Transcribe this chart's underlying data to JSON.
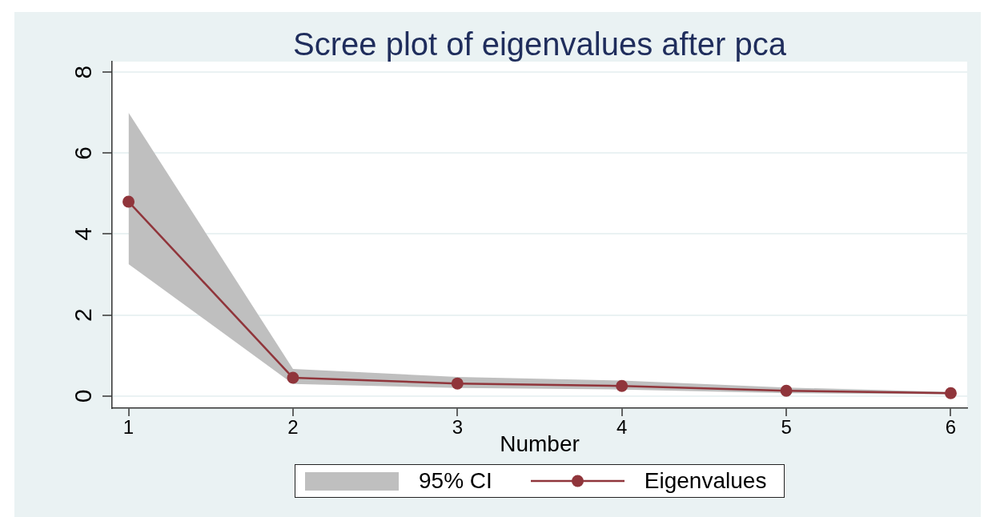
{
  "chart_data": {
    "type": "line",
    "title": "Scree plot of eigenvalues after pca",
    "xlabel": "Number",
    "x": [
      1,
      2,
      3,
      4,
      5,
      6
    ],
    "series": [
      {
        "name": "Eigenvalues",
        "color": "#90353b",
        "values": [
          4.8,
          0.45,
          0.31,
          0.25,
          0.13,
          0.07
        ],
        "lower": [
          3.26,
          0.3,
          0.2,
          0.16,
          0.07,
          0.04
        ],
        "upper": [
          7.0,
          0.67,
          0.47,
          0.38,
          0.21,
          0.1
        ]
      }
    ],
    "annotations": [
      "95% CI"
    ],
    "xlim": [
      0.9,
      6.1
    ],
    "xticks": [
      1,
      2,
      3,
      4,
      5,
      6
    ],
    "ylim": [
      -0.3,
      8.26
    ],
    "yticks": [
      0,
      2,
      4,
      6,
      8
    ],
    "grid": "y",
    "legend": "bottom",
    "marker": "circle",
    "line_style": "solid"
  }
}
